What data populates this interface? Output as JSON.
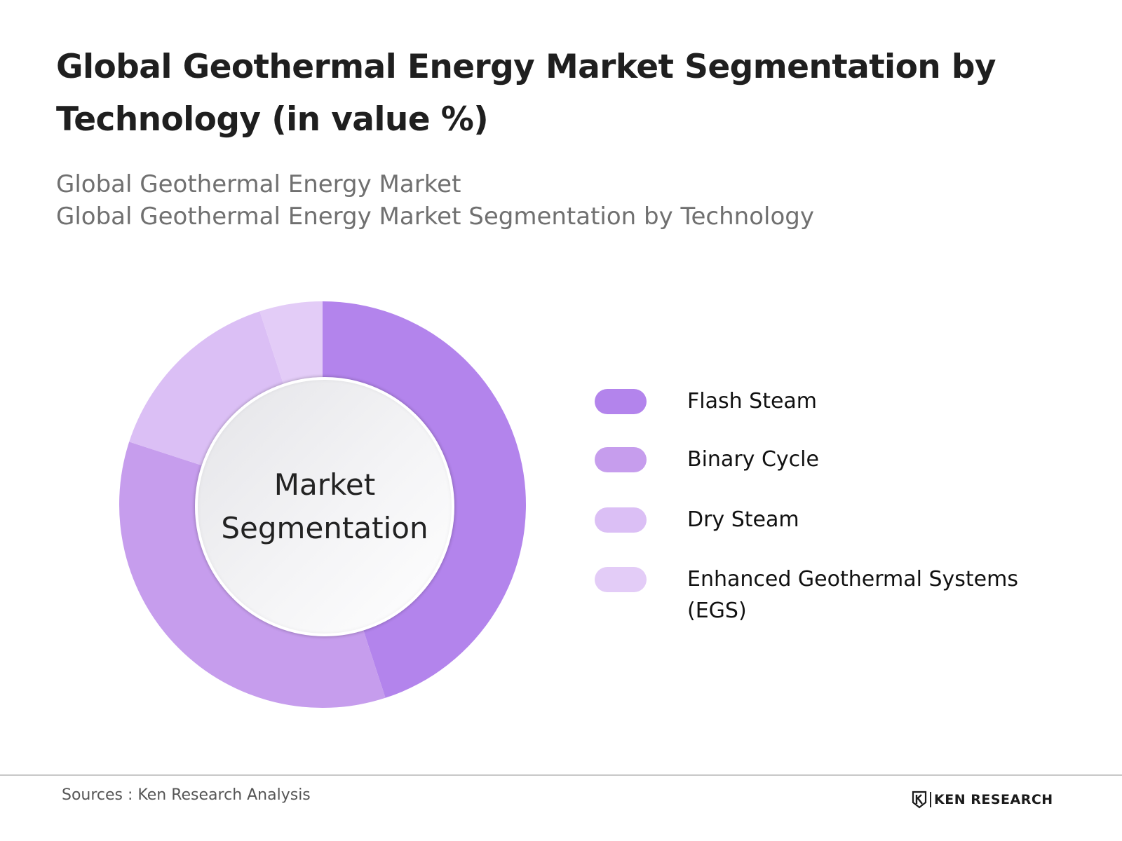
{
  "header": {
    "title": "Global Geothermal Energy Market Segmentation by Technology (in value %)",
    "subtitle_lines": [
      "Global Geothermal Energy Market",
      "Global Geothermal Energy Market Segmentation by Technology"
    ]
  },
  "chart_data": {
    "type": "pie",
    "center_label": "Market Segmentation",
    "categories": [
      "Flash Steam",
      "Binary Cycle",
      "Dry Steam",
      "Enhanced Geothermal Systems (EGS)"
    ],
    "values": [
      45,
      35,
      15,
      5
    ],
    "colors": [
      "#b384ec",
      "#c69ded",
      "#dbbff5",
      "#e3ccf7"
    ],
    "legend_position": "right"
  },
  "footer": {
    "source": "Sources : Ken Research Analysis",
    "brand": "KEN RESEARCH"
  }
}
